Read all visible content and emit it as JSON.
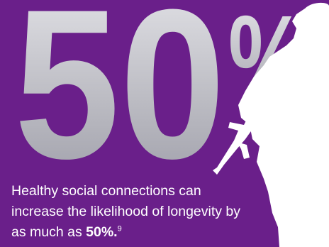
{
  "stat": {
    "number": "50",
    "symbol": "%"
  },
  "caption": {
    "text": "Healthy social connections can increase the likelihood of longevity by as much as ",
    "emphasis": "50%.",
    "footnote": "9"
  },
  "colors": {
    "background": "#6a1f8a",
    "stat_fill": "#c9c9cf",
    "silhouette": "#ffffff",
    "text": "#ffffff"
  },
  "illustration": "soldier-silhouette"
}
